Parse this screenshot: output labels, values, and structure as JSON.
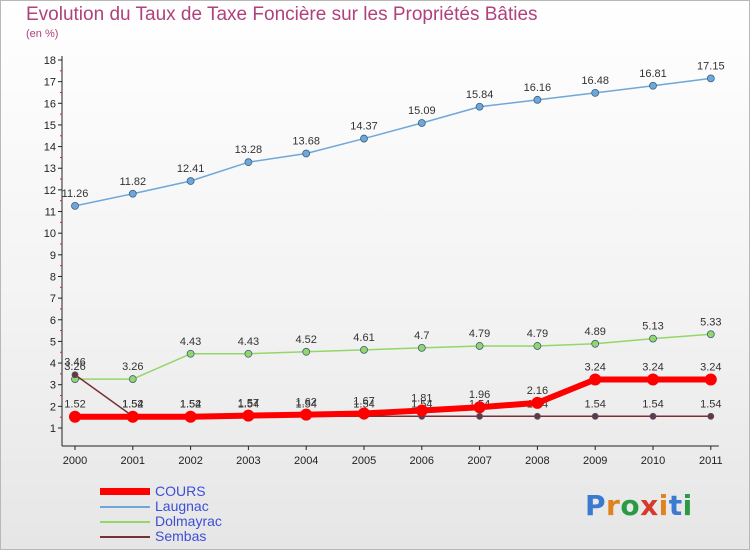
{
  "chart_data": {
    "type": "line",
    "title": "Evolution du Taux de Taxe Foncière sur les Propriétés Bâties",
    "subtitle": "(en %)",
    "categories": [
      "2000",
      "2001",
      "2002",
      "2003",
      "2004",
      "2005",
      "2006",
      "2007",
      "2008",
      "2009",
      "2010",
      "2011"
    ],
    "y_ticks": [
      "1",
      "2",
      "3",
      "4",
      "5",
      "6",
      "7",
      "8",
      "9",
      "10",
      "11",
      "12",
      "13",
      "14",
      "15",
      "16",
      "17",
      "18"
    ],
    "ylim": [
      1,
      18
    ],
    "grid": false,
    "legend_position": "bottom-left",
    "series": [
      {
        "name": "COURS",
        "color": "#ff0000",
        "values": [
          1.52,
          1.52,
          1.52,
          1.57,
          1.62,
          1.67,
          1.81,
          1.96,
          2.16,
          3.24,
          3.24,
          3.24
        ],
        "labels": [
          "1.52",
          "1.52",
          "1.52",
          "1.57",
          "1.62",
          "1.67",
          "1.81",
          "1.96",
          "2.16",
          "3.24",
          "3.24",
          "3.24"
        ]
      },
      {
        "name": "Laugnac",
        "color": "#6fa7d8",
        "values": [
          11.26,
          11.82,
          12.41,
          13.28,
          13.68,
          14.37,
          15.09,
          15.84,
          16.16,
          16.48,
          16.81,
          17.15
        ],
        "labels": [
          "11.26",
          "11.82",
          "12.41",
          "13.28",
          "13.68",
          "14.37",
          "15.09",
          "15.84",
          "16.16",
          "16.48",
          "16.81",
          "17.15"
        ]
      },
      {
        "name": "Dolmayrac",
        "color": "#94d66a",
        "values": [
          3.26,
          3.26,
          4.43,
          4.43,
          4.52,
          4.61,
          4.7,
          4.79,
          4.79,
          4.89,
          5.13,
          5.33
        ],
        "labels": [
          "3.26",
          "3.26",
          "4.43",
          "4.43",
          "4.52",
          "4.61",
          "4.7",
          "4.79",
          "4.79",
          "4.89",
          "5.13",
          "5.33"
        ]
      },
      {
        "name": "Sembas",
        "color": "#7a2e36",
        "values": [
          3.46,
          1.54,
          1.54,
          1.54,
          1.54,
          1.54,
          1.54,
          1.54,
          1.54,
          1.54,
          1.54,
          1.54
        ],
        "labels": [
          "3.46",
          "1.54",
          "1.54",
          "1.54",
          "1.54",
          "1.54",
          "1.54",
          "1.54",
          "1.54",
          "1.54",
          "1.54",
          "1.54"
        ]
      }
    ]
  },
  "logo": {
    "text": "Proxiti",
    "colors": [
      "#3a7ad1",
      "#e0821f",
      "#2a9a44",
      "#d63a2d",
      "#e0821f",
      "#3a7ad1",
      "#2a9a44"
    ]
  }
}
